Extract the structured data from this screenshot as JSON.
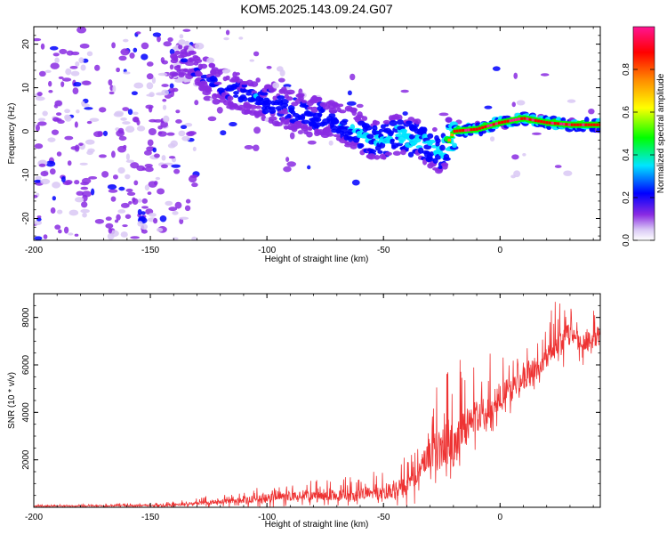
{
  "figure_title": "KOM5.2025.143.09.24.G07",
  "chart_data": [
    {
      "type": "heatmap",
      "xlabel": "Height of straight line (km)",
      "ylabel": "Frequency (Hz)",
      "xlim": [
        -200,
        43
      ],
      "ylim": [
        -25,
        24
      ],
      "x_ticks": [
        -200,
        -150,
        -100,
        -50,
        0
      ],
      "x_tick_labels": [
        "-200",
        "-150",
        "-100",
        "-50",
        "0"
      ],
      "y_ticks": [
        -20,
        -10,
        0,
        10,
        20
      ],
      "y_tick_labels": [
        "-20",
        "-10",
        "0",
        "10",
        "20"
      ],
      "colorbar": {
        "label": "Normalized spectral amplitude",
        "range": [
          0,
          1
        ],
        "ticks": [
          0.0,
          0.2,
          0.4,
          0.6,
          0.8
        ],
        "tick_labels": [
          "0.0",
          "0.2",
          "0.4",
          "0.6",
          "0.8"
        ],
        "colormap": [
          "#ffffff",
          "#d9c8f5",
          "#8a2be2",
          "#0000ff",
          "#00e5ff",
          "#00ff00",
          "#ffff00",
          "#ff8c00",
          "#ff0000",
          "#ff1493"
        ]
      },
      "ridge": {
        "x": [
          -135,
          -125,
          -115,
          -105,
          -95,
          -85,
          -75,
          -65,
          -55,
          -45,
          -35,
          -25,
          -20,
          -10,
          0,
          10,
          20,
          30,
          43
        ],
        "y": [
          16,
          12,
          9,
          8,
          6,
          4,
          3,
          1,
          -2,
          -1,
          -2,
          -5,
          0,
          0.5,
          2,
          3,
          2,
          1.5,
          1.5
        ],
        "peak_amplitude": [
          0.25,
          0.3,
          0.35,
          0.4,
          0.4,
          0.4,
          0.4,
          0.45,
          0.5,
          0.55,
          0.55,
          0.6,
          0.9,
          0.95,
          0.95,
          0.95,
          0.95,
          0.95,
          0.9
        ]
      }
    },
    {
      "type": "line",
      "xlabel": "Height of straight line (km)",
      "ylabel": "SNR (10 * v/v)",
      "xlim": [
        -200,
        43
      ],
      "ylim": [
        0,
        9000
      ],
      "x_ticks": [
        -200,
        -150,
        -100,
        -50,
        0
      ],
      "x_tick_labels": [
        "-200",
        "-150",
        "-100",
        "-50",
        "0"
      ],
      "y_ticks": [
        2000,
        4000,
        6000,
        8000
      ],
      "y_tick_labels": [
        "2000",
        "4000",
        "6000",
        "8000"
      ],
      "color": "#ee3333",
      "envelope": {
        "x": [
          -200,
          -175,
          -150,
          -140,
          -125,
          -110,
          -100,
          -90,
          -75,
          -60,
          -50,
          -40,
          -35,
          -30,
          -25,
          -20,
          -15,
          -10,
          -5,
          0,
          5,
          10,
          15,
          20,
          25,
          30,
          35,
          40,
          43
        ],
        "mean": [
          50,
          60,
          80,
          100,
          200,
          300,
          400,
          450,
          500,
          550,
          600,
          900,
          1500,
          2200,
          2700,
          2600,
          3400,
          3800,
          4200,
          4700,
          5000,
          5400,
          5900,
          6300,
          7000,
          7300,
          7000,
          7100,
          7000
        ],
        "upper": [
          120,
          150,
          200,
          250,
          500,
          700,
          900,
          1000,
          1200,
          1400,
          1600,
          2200,
          3000,
          4000,
          6000,
          6300,
          6200,
          6500,
          6600,
          6800,
          7000,
          7200,
          7500,
          8000,
          9000,
          8600,
          8000,
          8300,
          8000
        ],
        "lower": [
          0,
          0,
          0,
          0,
          0,
          0,
          0,
          0,
          0,
          0,
          0,
          0,
          200,
          400,
          500,
          1000,
          1800,
          2500,
          3000,
          3500,
          4000,
          4500,
          5000,
          5500,
          6000,
          5800,
          5800,
          6000,
          6000
        ]
      }
    }
  ]
}
